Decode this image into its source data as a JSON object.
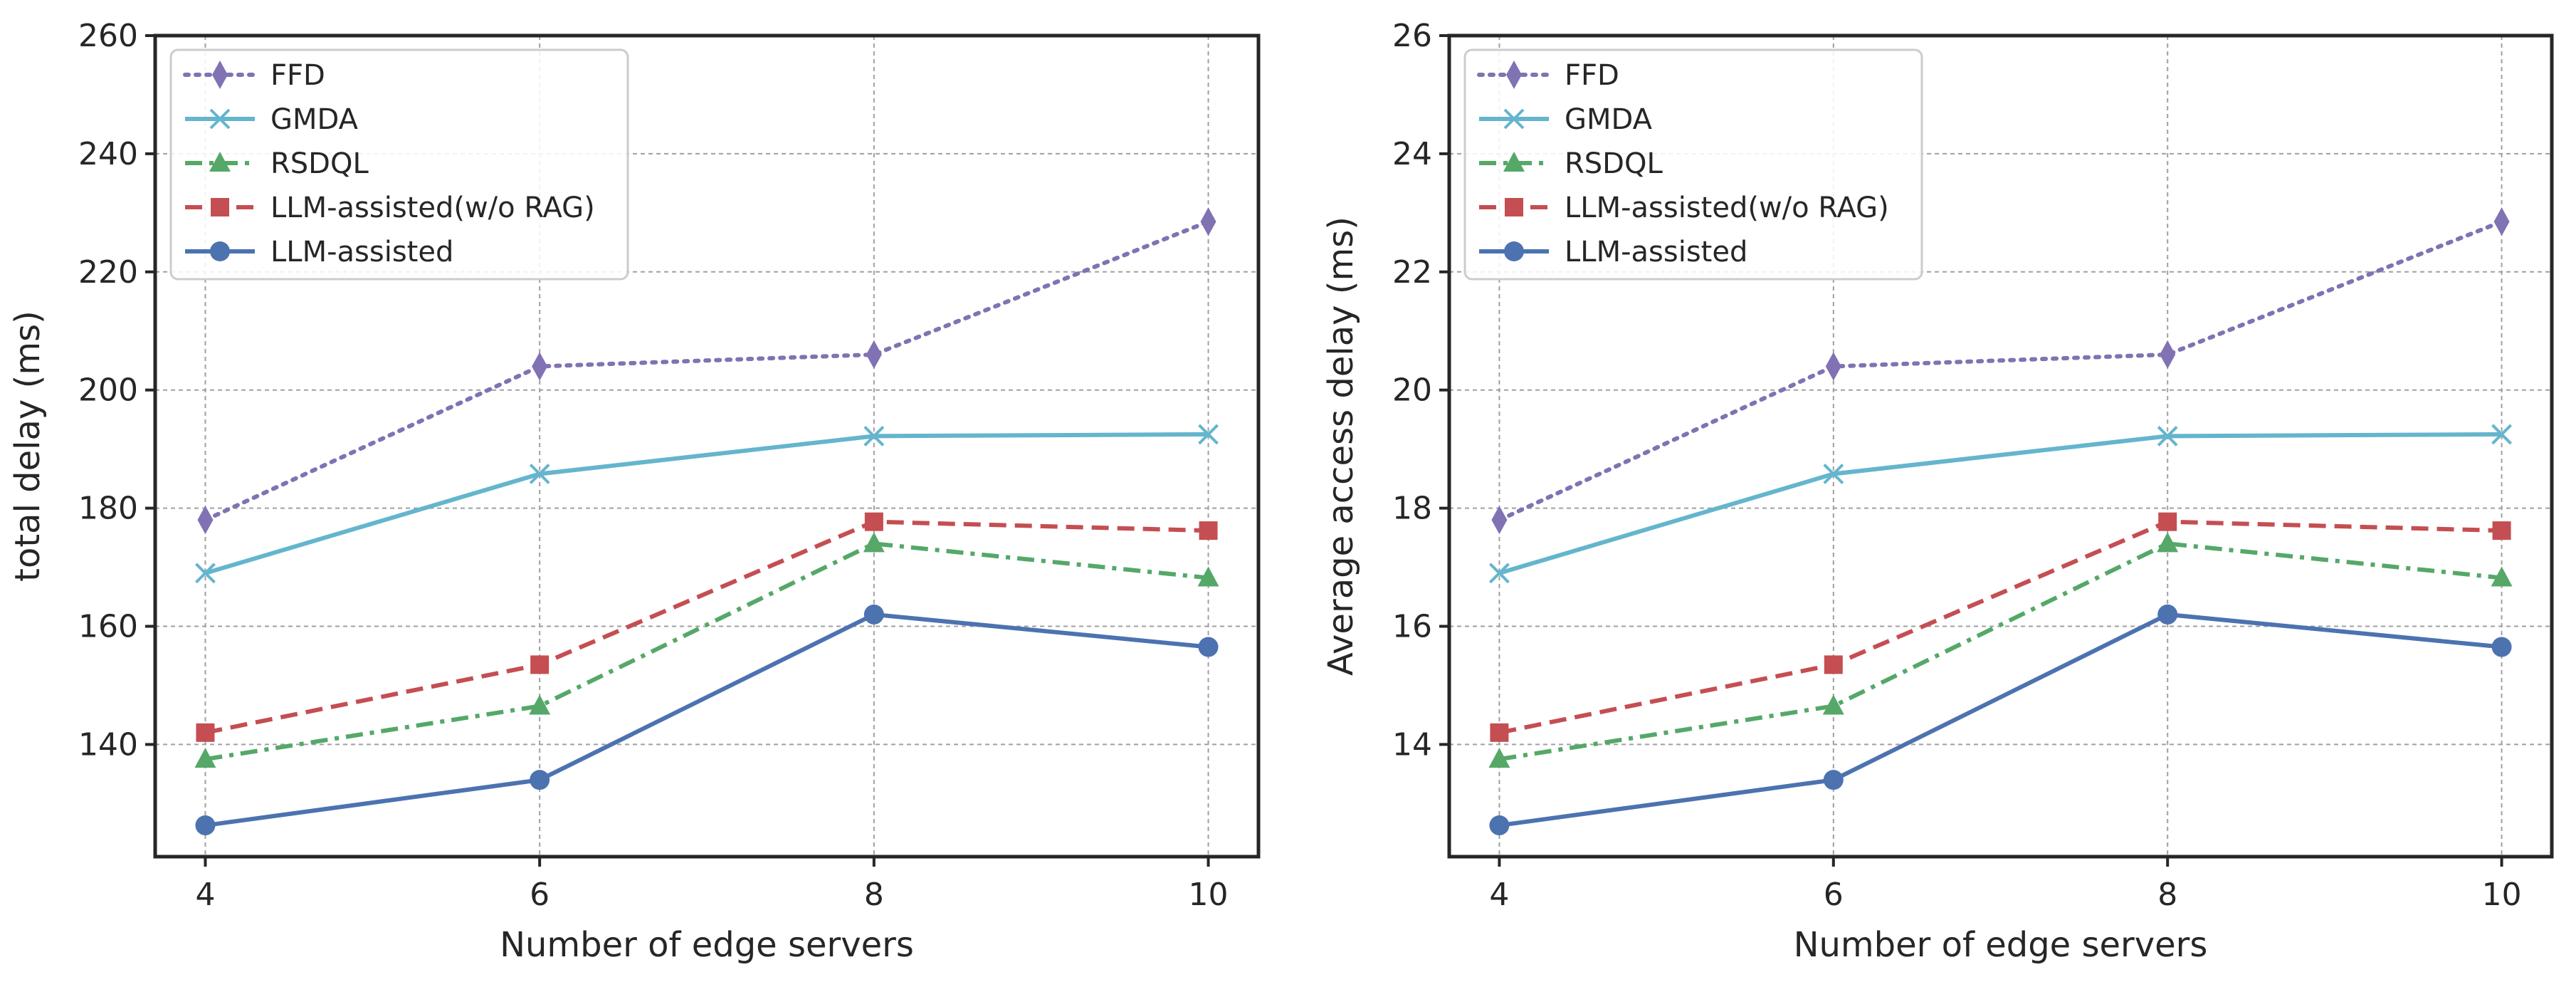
{
  "chart_data": [
    {
      "type": "line",
      "title": "",
      "xlabel": "Number of edge servers",
      "ylabel": "total delay (ms)",
      "x": [
        4,
        6,
        8,
        10
      ],
      "xticks": [
        "4",
        "6",
        "8",
        "10"
      ],
      "xlim": [
        3.7,
        10.3
      ],
      "ylim": [
        121,
        260
      ],
      "yticks": [
        140,
        160,
        180,
        200,
        220,
        240,
        260
      ],
      "grid": true,
      "legend_position": "top-left",
      "series": [
        {
          "name": "FFD",
          "values": [
            178,
            204,
            206,
            228.5
          ],
          "color": "#8172b3",
          "linestyle": "dotted",
          "marker": "diamond"
        },
        {
          "name": "GMDA",
          "values": [
            169,
            185.8,
            192.2,
            192.5
          ],
          "color": "#64b5cd",
          "linestyle": "solid",
          "marker": "x"
        },
        {
          "name": "RSDQL",
          "values": [
            137.5,
            146.5,
            174,
            168.2
          ],
          "color": "#55a868",
          "linestyle": "dashdot",
          "marker": "triangle"
        },
        {
          "name": "LLM-assisted(w/o RAG)",
          "values": [
            142,
            153.5,
            177.7,
            176.2
          ],
          "color": "#c44e52",
          "linestyle": "dashed",
          "marker": "square"
        },
        {
          "name": "LLM-assisted",
          "values": [
            126.3,
            134,
            162,
            156.5
          ],
          "color": "#4c72b0",
          "linestyle": "solid",
          "marker": "circle"
        }
      ]
    },
    {
      "type": "line",
      "title": "",
      "xlabel": "Number of edge servers",
      "ylabel": "Average access delay (ms)",
      "x": [
        4,
        6,
        8,
        10
      ],
      "xticks": [
        "4",
        "6",
        "8",
        "10"
      ],
      "xlim": [
        3.7,
        10.3
      ],
      "ylim": [
        12.1,
        26
      ],
      "yticks": [
        14,
        16,
        18,
        20,
        22,
        24,
        26
      ],
      "grid": true,
      "legend_position": "top-left",
      "series": [
        {
          "name": "FFD",
          "values": [
            17.8,
            20.4,
            20.6,
            22.85
          ],
          "color": "#8172b3",
          "linestyle": "dotted",
          "marker": "diamond"
        },
        {
          "name": "GMDA",
          "values": [
            16.9,
            18.58,
            19.22,
            19.25
          ],
          "color": "#64b5cd",
          "linestyle": "solid",
          "marker": "x"
        },
        {
          "name": "RSDQL",
          "values": [
            13.75,
            14.65,
            17.4,
            16.82
          ],
          "color": "#55a868",
          "linestyle": "dashdot",
          "marker": "triangle"
        },
        {
          "name": "LLM-assisted(w/o RAG)",
          "values": [
            14.2,
            15.35,
            17.77,
            17.62
          ],
          "color": "#c44e52",
          "linestyle": "dashed",
          "marker": "square"
        },
        {
          "name": "LLM-assisted",
          "values": [
            12.63,
            13.4,
            16.2,
            15.65
          ],
          "color": "#4c72b0",
          "linestyle": "solid",
          "marker": "circle"
        }
      ]
    }
  ]
}
